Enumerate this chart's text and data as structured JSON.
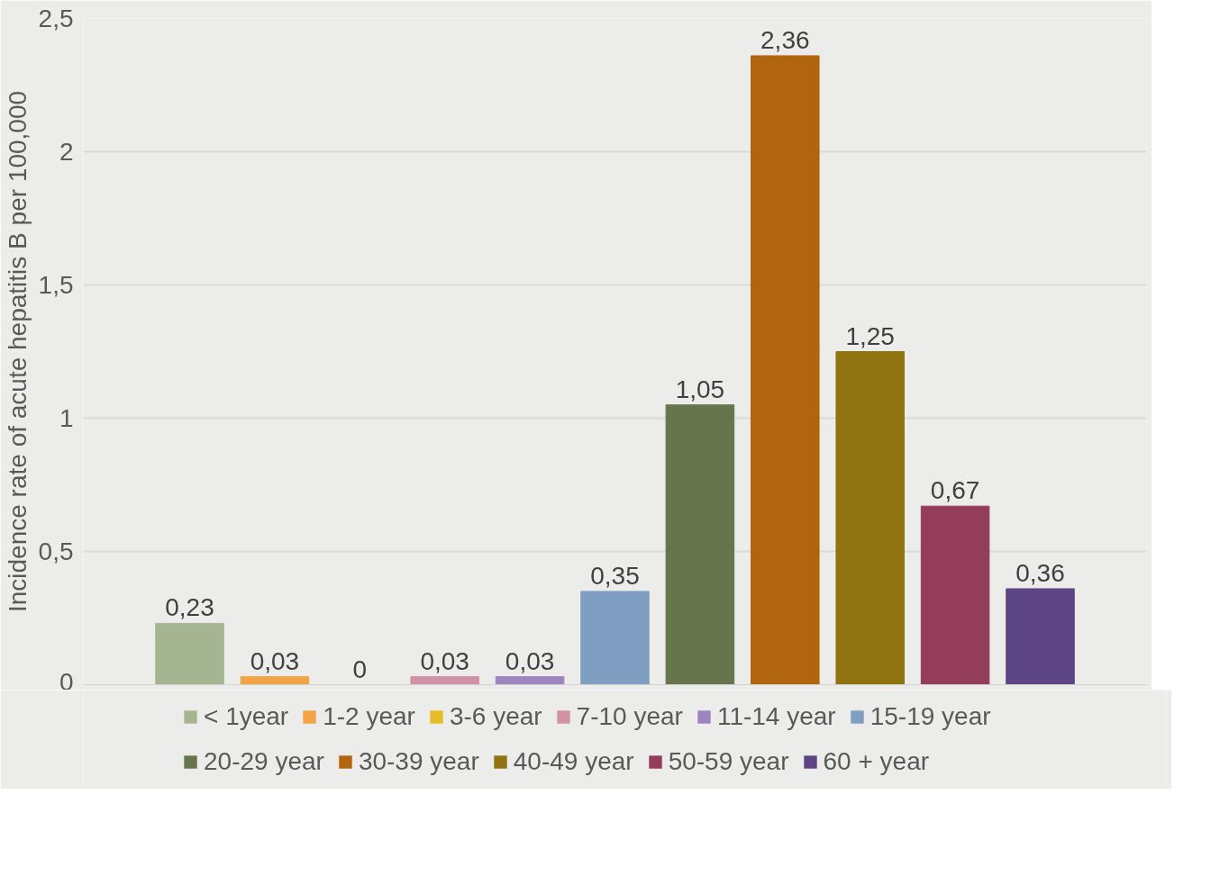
{
  "chart_data": {
    "type": "bar",
    "ylabel": "Incidence rate of acute hepatitis B per 100,000",
    "categories": [
      null
    ],
    "series": [
      {
        "name": "< 1year",
        "color": "#a5b592",
        "values": [
          0.23
        ],
        "value_labels": [
          "0,23"
        ]
      },
      {
        "name": "1-2 year",
        "color": "#f3a447",
        "values": [
          0.03
        ],
        "value_labels": [
          "0,03"
        ]
      },
      {
        "name": "3-6 year",
        "color": "#e7bc29",
        "values": [
          0
        ],
        "value_labels": [
          "0"
        ]
      },
      {
        "name": "7-10 year",
        "color": "#d092a7",
        "values": [
          0.03
        ],
        "value_labels": [
          "0,03"
        ]
      },
      {
        "name": "11-14 year",
        "color": "#9c85c0",
        "values": [
          0.03
        ],
        "value_labels": [
          "0,03"
        ]
      },
      {
        "name": "15-19 year",
        "color": "#809ec2",
        "values": [
          0.35
        ],
        "value_labels": [
          "0,35"
        ]
      },
      {
        "name": "20-29 year",
        "color": "#67754d",
        "values": [
          1.05
        ],
        "value_labels": [
          "1,05"
        ]
      },
      {
        "name": "30-39 year",
        "color": "#b1650e",
        "values": [
          2.36
        ],
        "value_labels": [
          "2,36"
        ]
      },
      {
        "name": "40-49 year",
        "color": "#8f7411",
        "values": [
          1.25
        ],
        "value_labels": [
          "1,25"
        ]
      },
      {
        "name": "50-59 year",
        "color": "#943d5a",
        "values": [
          0.67
        ],
        "value_labels": [
          "0,67"
        ]
      },
      {
        "name": "60 + year",
        "color": "#5c4582",
        "values": [
          0.36
        ],
        "value_labels": [
          "0,36"
        ]
      }
    ],
    "ylim": [
      0,
      2.5
    ],
    "yticks": [
      0,
      {
        "value": 0.5,
        "label": "0,5"
      },
      1,
      {
        "value": 1.5,
        "label": "1,5"
      },
      2,
      {
        "value": 2.5,
        "label": "2,5"
      }
    ],
    "grid": "y",
    "legend": "bottom",
    "tick_labels": "y"
  }
}
